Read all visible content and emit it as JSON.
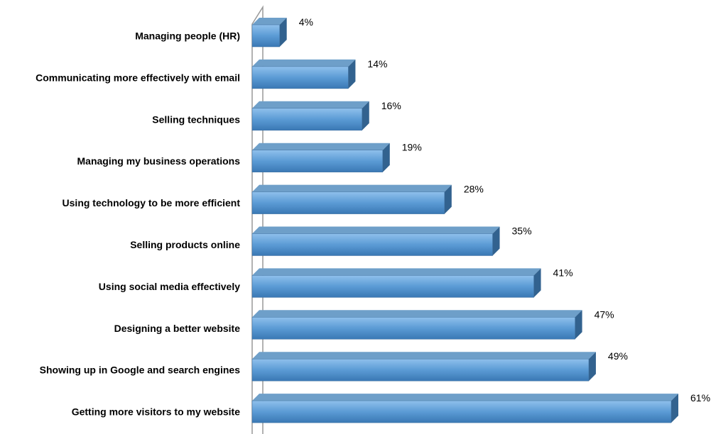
{
  "chart_data": {
    "type": "bar",
    "orientation": "horizontal",
    "categories": [
      "Managing people (HR)",
      "Communicating more effectively with email",
      "Selling techniques",
      "Managing my business operations",
      "Using technology to be more efficient",
      "Selling products online",
      "Using social media effectively",
      "Designing a better website",
      "Showing up in Google and search engines",
      "Getting more visitors to my website"
    ],
    "values": [
      4,
      14,
      16,
      19,
      28,
      35,
      41,
      47,
      49,
      61
    ],
    "value_labels": [
      "4%",
      "14%",
      "16%",
      "19%",
      "28%",
      "35%",
      "41%",
      "47%",
      "49%",
      "61%"
    ],
    "unit": "%",
    "xlim": [
      0,
      63
    ],
    "title": "",
    "xlabel": "",
    "ylabel": "",
    "grid": false,
    "legend": "none",
    "style": "3d",
    "colors": {
      "bar_front": "#5b9bd5",
      "bar_light": "#8fc0ec",
      "bar_dark": "#3a78b4",
      "bar_top": "#6e9fc9",
      "bar_side": "#32628f",
      "axis": "#999999"
    }
  }
}
